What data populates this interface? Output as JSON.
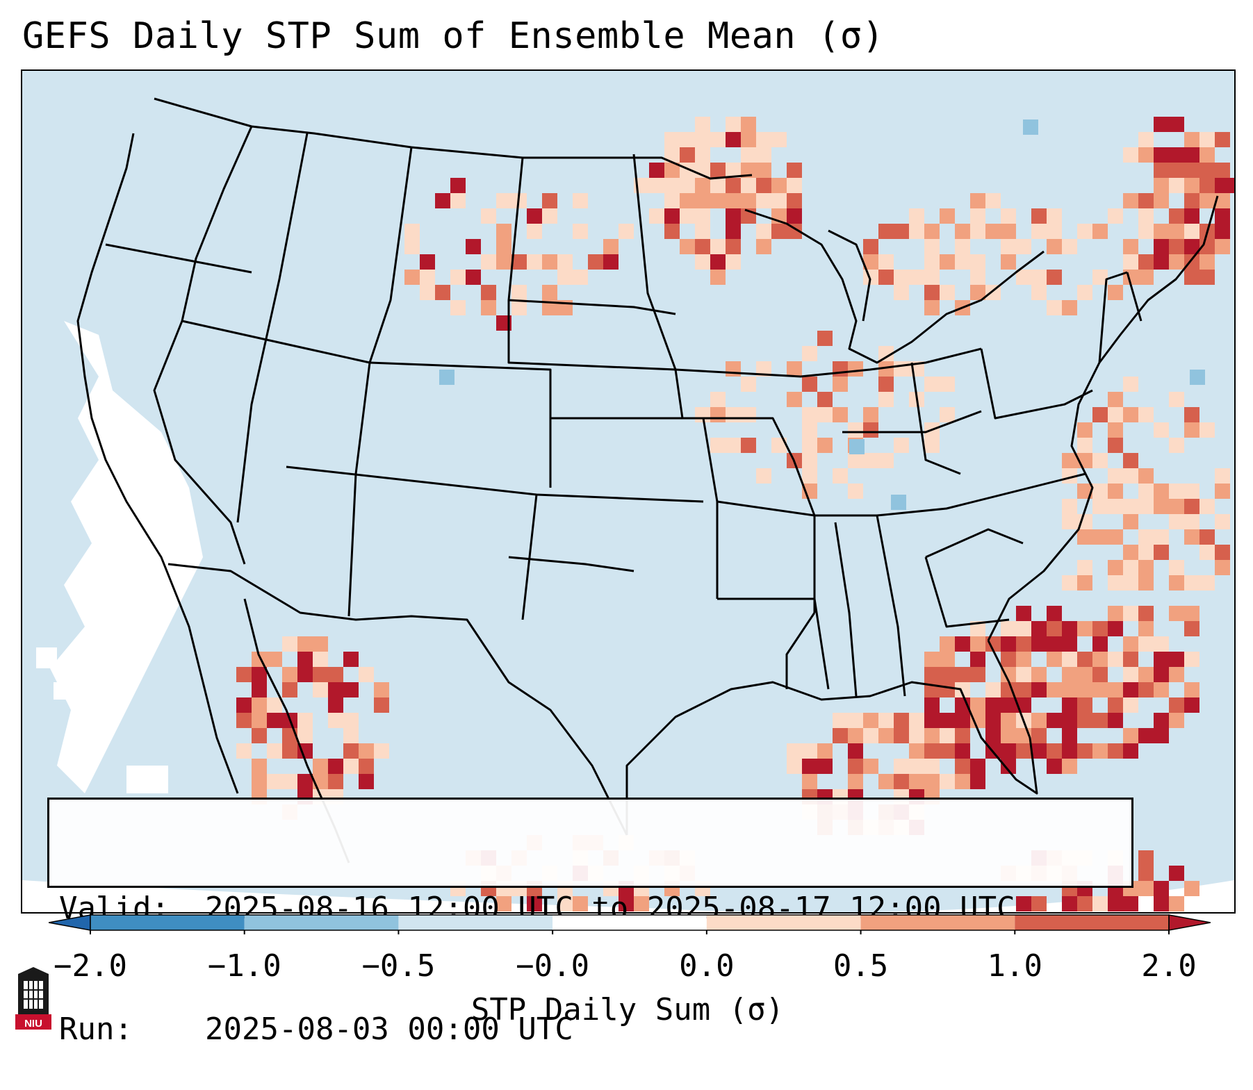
{
  "title": "GEFS Daily STP Sum of Ensemble Mean (σ)",
  "info": {
    "valid_label": "Valid:",
    "valid_value": "2025-08-16 12:00 UTC to 2025-08-17 12:00 UTC",
    "run_label": "Run:",
    "run_value": "2025-08-03 00:00 UTC"
  },
  "colorbar": {
    "label": "STP Daily Sum (σ)",
    "ticks": [
      "−2.0",
      "−1.0",
      "−0.5",
      "−0.0",
      "0.0",
      "0.5",
      "1.0",
      "2.0"
    ],
    "colors": [
      "#2166ac",
      "#3f8ec2",
      "#90c3de",
      "#d1e5f0",
      "#ffffff",
      "#fcdbc7",
      "#f1a17f",
      "#d6604d",
      "#b2182b"
    ]
  },
  "logo": {
    "text": "NIU"
  },
  "map": {
    "ocean_color": "#d1e5f0",
    "boundary_color": "#000000"
  }
}
